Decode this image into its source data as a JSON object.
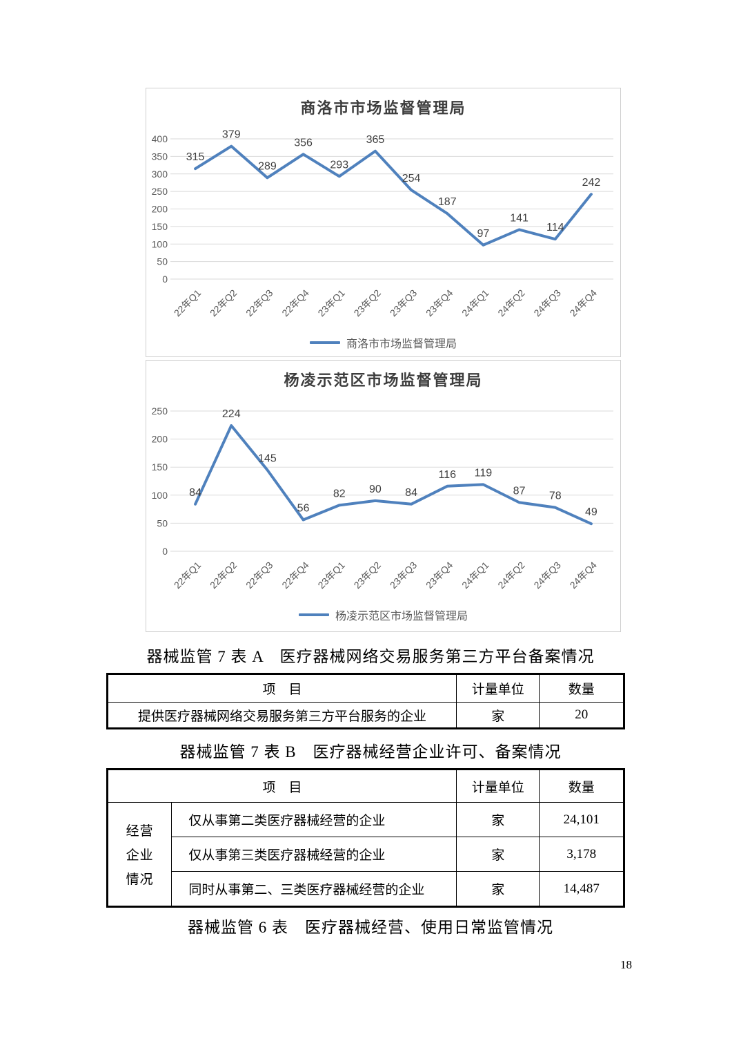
{
  "theme": {
    "line_color": "#4f81bd",
    "grid_color": "#d9d9d9",
    "panel_border_color": "#cfcfcf"
  },
  "chart_data": [
    {
      "type": "line",
      "title": "商洛市市场监督管理局",
      "legend": "商洛市市场监督管理局",
      "legend_position": "bottom",
      "grid": true,
      "categories": [
        "22年Q1",
        "22年Q2",
        "22年Q3",
        "22年Q4",
        "23年Q1",
        "23年Q2",
        "23年Q3",
        "23年Q4",
        "24年Q1",
        "24年Q2",
        "24年Q3",
        "24年Q4"
      ],
      "values": [
        315,
        379,
        289,
        356,
        293,
        365,
        254,
        187,
        97,
        141,
        114,
        242
      ],
      "xlabel": "",
      "ylabel": "",
      "ylim": [
        0,
        400
      ],
      "ytick_step": 50
    },
    {
      "type": "line",
      "title": "杨凌示范区市场监督管理局",
      "legend": "杨凌示范区市场监督管理局",
      "legend_position": "bottom",
      "grid": true,
      "categories": [
        "22年Q1",
        "22年Q2",
        "22年Q3",
        "22年Q4",
        "23年Q1",
        "23年Q2",
        "23年Q3",
        "23年Q4",
        "24年Q1",
        "24年Q2",
        "24年Q3",
        "24年Q4"
      ],
      "values": [
        84,
        224,
        145,
        56,
        82,
        90,
        84,
        116,
        119,
        87,
        78,
        49
      ],
      "xlabel": "",
      "ylabel": "",
      "ylim": [
        0,
        250
      ],
      "ytick_step": 50
    }
  ],
  "tables": {
    "a": {
      "caption": "器械监管 7 表 A　医疗器械网络交易服务第三方平台备案情况",
      "headers": [
        "项　目",
        "计量单位",
        "数量"
      ],
      "rows": [
        {
          "item": "提供医疗器械网络交易服务第三方平台服务的企业",
          "unit": "家",
          "value": "20"
        }
      ]
    },
    "b": {
      "caption": "器械监管 7 表 B　医疗器械经营企业许可、备案情况",
      "headers": [
        "项　目",
        "计量单位",
        "数量"
      ],
      "group_label": [
        "经营",
        "企业",
        "情况"
      ],
      "rows": [
        {
          "item": "仅从事第二类医疗器械经营的企业",
          "unit": "家",
          "value": "24,101"
        },
        {
          "item": "仅从事第三类医疗器械经营的企业",
          "unit": "家",
          "value": "3,178"
        },
        {
          "item": "同时从事第二、三类医疗器械经营的企业",
          "unit": "家",
          "value": "14,487"
        }
      ]
    }
  },
  "caption_table6": "器械监管 6 表　医疗器械经营、使用日常监管情况",
  "page": {
    "number": "18"
  }
}
